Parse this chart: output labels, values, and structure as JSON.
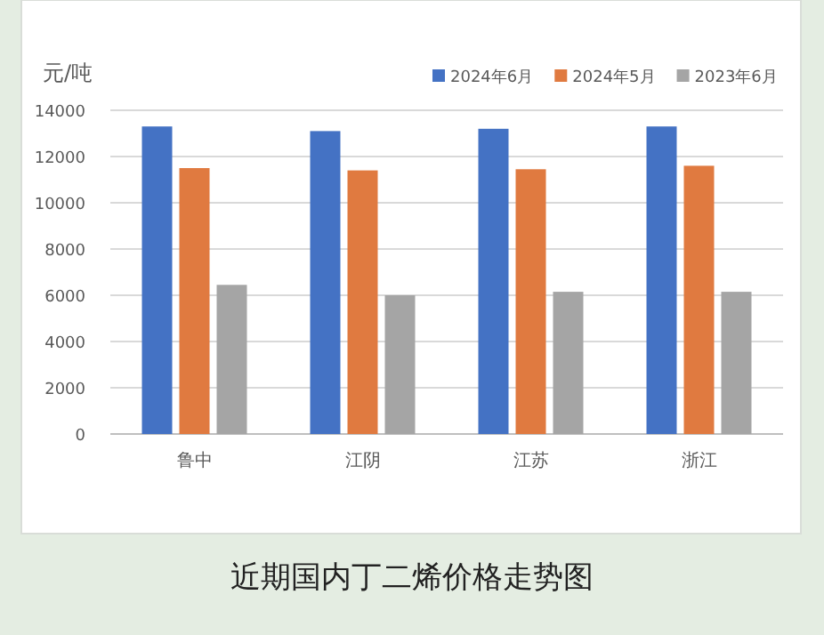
{
  "chart_data": {
    "type": "bar",
    "title": "近期国内丁二烯价格走势图",
    "ylabel": "元/吨",
    "categories": [
      "鲁中",
      "江阴",
      "江苏",
      "浙江"
    ],
    "series": [
      {
        "name": "2024年6月",
        "color": "#4472c4",
        "values": [
          13300,
          13100,
          13200,
          13300
        ]
      },
      {
        "name": "2024年5月",
        "color": "#e07a40",
        "values": [
          11500,
          11400,
          11450,
          11600
        ]
      },
      {
        "name": "2023年6月",
        "color": "#a5a5a5",
        "values": [
          6450,
          6000,
          6150,
          6150
        ]
      }
    ],
    "ylim": [
      0,
      14000
    ],
    "yticks": [
      0,
      2000,
      4000,
      6000,
      8000,
      10000,
      12000,
      14000
    ],
    "grid": "y",
    "legend": "top right"
  }
}
